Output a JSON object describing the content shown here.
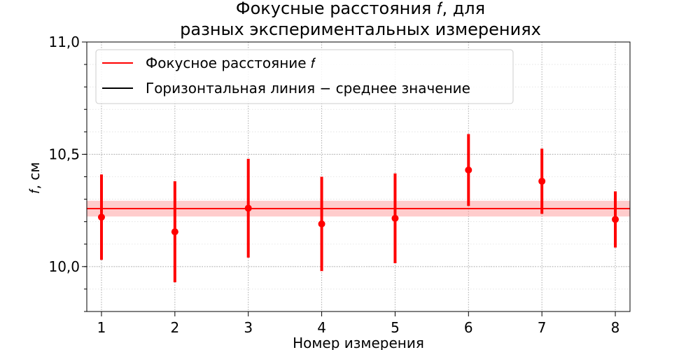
{
  "chart_data": {
    "type": "scatter",
    "title_lines": [
      "Фокусные расстояния 𝑓, для",
      "разных экспериментальных измерениях"
    ],
    "xlabel": "Номер измерения",
    "ylabel": "𝑓, см",
    "xlim": [
      0.8,
      8.2
    ],
    "ylim": [
      9.8,
      11.0
    ],
    "x_ticks": [
      1,
      2,
      3,
      4,
      5,
      6,
      7,
      8
    ],
    "x_tick_labels": [
      "1",
      "2",
      "3",
      "4",
      "5",
      "6",
      "7",
      "8"
    ],
    "y_ticks": [
      10.0,
      10.5,
      11.0
    ],
    "y_tick_labels": [
      "10,0",
      "10,5",
      "11,0"
    ],
    "y_minor_step": 0.1,
    "grid": true,
    "legend_position": "top-left",
    "series": [
      {
        "name": "Фокусное расстояние 𝑓",
        "color": "#ff0000",
        "x": [
          1,
          2,
          3,
          4,
          5,
          6,
          7,
          8
        ],
        "y": [
          10.22,
          10.155,
          10.26,
          10.19,
          10.215,
          10.43,
          10.38,
          10.21
        ],
        "yerr": [
          0.19,
          0.225,
          0.22,
          0.21,
          0.2,
          0.16,
          0.145,
          0.125
        ]
      }
    ],
    "mean_line": {
      "name": "Горизонтальная линия − среднее значение",
      "value": 10.258,
      "band": [
        10.223,
        10.293
      ],
      "color": "#ff0000",
      "band_color": "#ff9999",
      "legend_color": "#000000"
    }
  }
}
